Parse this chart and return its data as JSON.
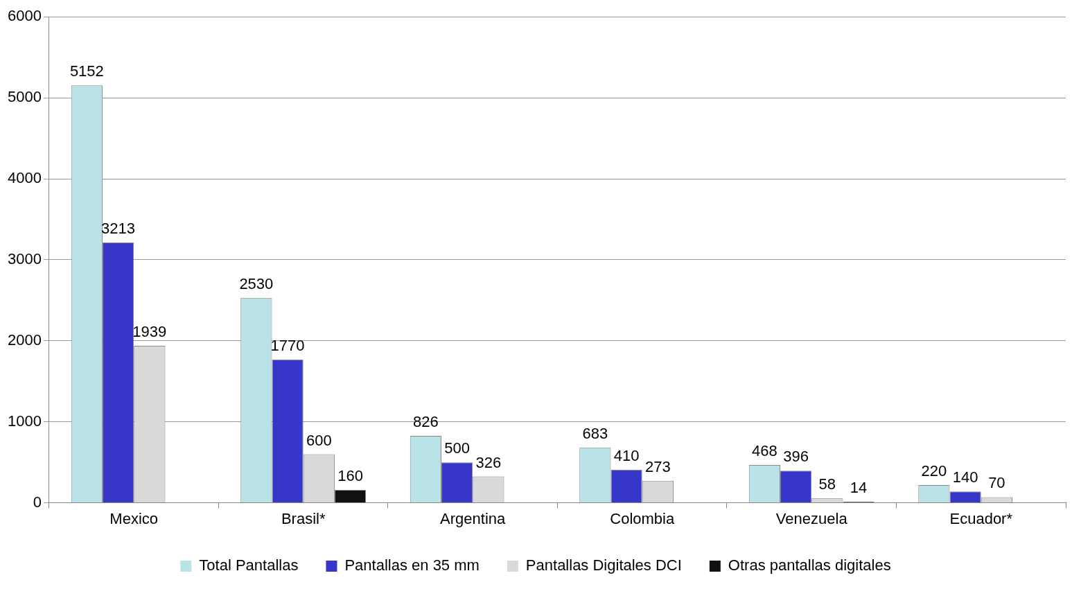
{
  "chart_data": {
    "type": "bar",
    "categories": [
      "Mexico",
      "Brasil*",
      "Argentina",
      "Colombia",
      "Venezuela",
      "Ecuador*"
    ],
    "series": [
      {
        "name": "Total Pantallas",
        "color": "#b9e3e6",
        "values": [
          5152,
          2530,
          826,
          683,
          468,
          220
        ]
      },
      {
        "name": "Pantallas en 35 mm",
        "color": "#3636c8",
        "values": [
          3213,
          1770,
          500,
          410,
          396,
          140
        ]
      },
      {
        "name": "Pantallas Digitales DCI",
        "color": "#d9d9d9",
        "values": [
          1939,
          600,
          326,
          273,
          58,
          70
        ]
      },
      {
        "name": "Otras pantallas digitales",
        "color": "#111111",
        "values": [
          null,
          160,
          null,
          null,
          14,
          null
        ]
      }
    ],
    "ylim": [
      0,
      6000
    ],
    "yticks": [
      0,
      1000,
      2000,
      3000,
      4000,
      5000,
      6000
    ],
    "grid": "y",
    "legend": "bottom",
    "data_labels": true
  }
}
